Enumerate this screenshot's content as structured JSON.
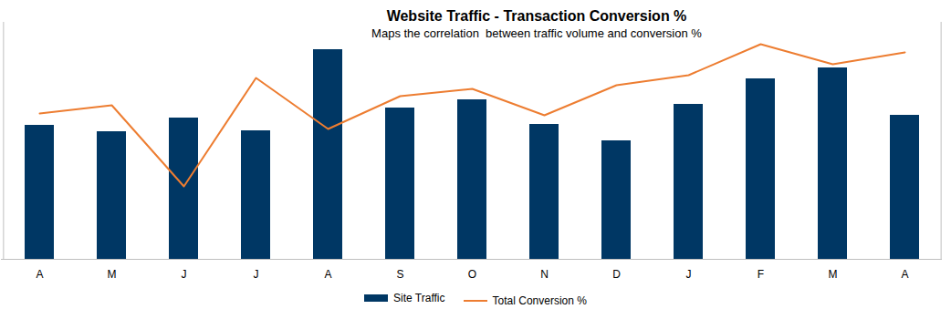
{
  "chart_data": {
    "type": "bar",
    "title": "Website Traffic - Transaction Conversion %",
    "subtitle": "Maps the correlation  between traffic volume and conversion %",
    "categories": [
      "A",
      "M",
      "J",
      "J",
      "A",
      "S",
      "O",
      "N",
      "D",
      "J",
      "F",
      "M",
      "A"
    ],
    "series": [
      {
        "name": "Site Traffic",
        "type": "bar",
        "color": "#003764",
        "values": [
          147,
          140,
          155,
          141,
          230,
          166,
          175,
          148,
          130,
          170,
          198,
          210,
          158
        ]
      },
      {
        "name": "Total Conversion %",
        "type": "line",
        "color": "#ed7d31",
        "axis": "y2",
        "values": [
          16.0,
          16.9,
          8.0,
          19.9,
          14.3,
          17.9,
          18.7,
          15.8,
          19.1,
          20.2,
          23.6,
          21.4,
          22.7
        ]
      }
    ],
    "ylim": [
      0,
      260
    ],
    "y2lim": [
      0,
      26
    ],
    "tick_labels": "x",
    "legend": "bottom"
  }
}
